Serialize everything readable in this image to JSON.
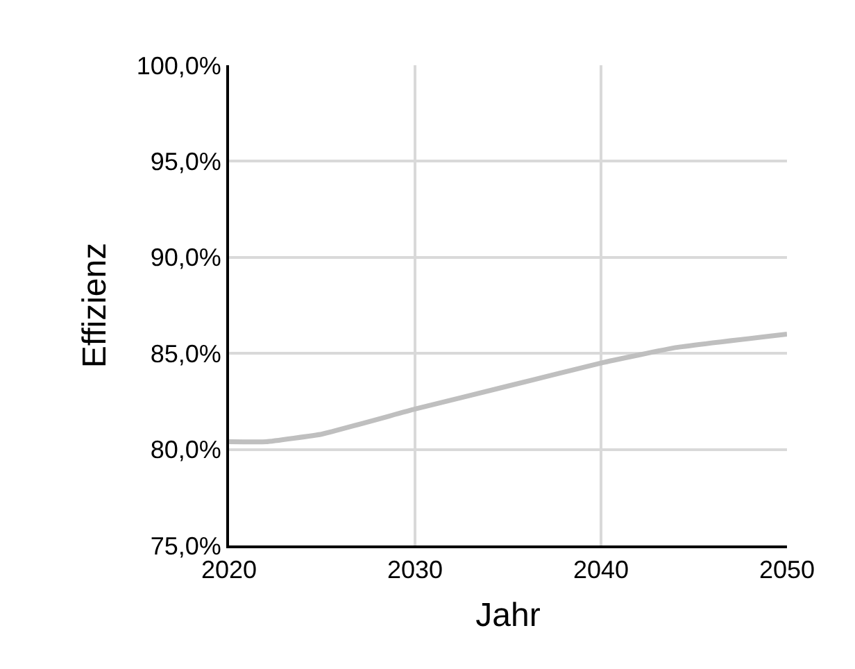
{
  "chart_data": {
    "type": "line",
    "xlabel": "Jahr",
    "ylabel": "Effizienz",
    "x": [
      2020,
      2022,
      2025,
      2030,
      2035,
      2040,
      2044,
      2050
    ],
    "series": [
      {
        "color": "#bfbfbf",
        "values": [
          80.4,
          80.4,
          80.8,
          82.1,
          83.3,
          84.5,
          85.3,
          86.0
        ]
      }
    ],
    "xlim": [
      2020,
      2050
    ],
    "xticks": [
      2020,
      2030,
      2040,
      2050
    ],
    "ylim": [
      75,
      100
    ],
    "yticks": [
      {
        "value": 75,
        "label": "75,0%"
      },
      {
        "value": 80,
        "label": "80,0%"
      },
      {
        "value": 85,
        "label": "85,0%"
      },
      {
        "value": 90,
        "label": "90,0%"
      },
      {
        "value": 95,
        "label": "95,0%"
      },
      {
        "value": 100,
        "label": "100,0%"
      }
    ],
    "grid": true,
    "marker": "none",
    "line_style": "solid"
  }
}
